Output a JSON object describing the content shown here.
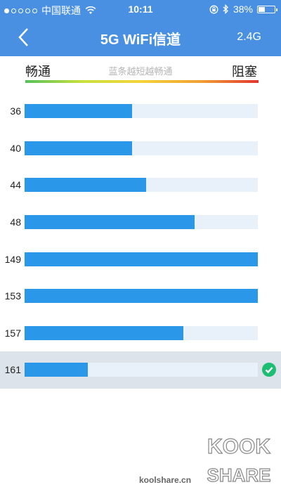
{
  "status_bar": {
    "signal_dots": [
      true,
      false,
      false,
      false,
      false
    ],
    "carrier": "中国联通",
    "time": "10:11",
    "battery": "38%",
    "icons": [
      "wifi-icon",
      "rotation-lock-icon",
      "bluetooth-icon",
      "battery-icon"
    ]
  },
  "nav": {
    "back_icon": "chevron-left-icon",
    "title": "5G WiFi信道",
    "right_label": "2.4G"
  },
  "legend": {
    "left": "畅通",
    "hint": "蓝条越短越畅通",
    "right": "阻塞",
    "gradient_colors": [
      "#55c15a",
      "#cbe13e",
      "#f5d23a",
      "#f2a033",
      "#e3352f"
    ]
  },
  "channels": [
    {
      "label": "36",
      "level": 0.46,
      "selected": false
    },
    {
      "label": "40",
      "level": 0.46,
      "selected": false
    },
    {
      "label": "44",
      "level": 0.52,
      "selected": false
    },
    {
      "label": "48",
      "level": 0.73,
      "selected": false
    },
    {
      "label": "149",
      "level": 1.0,
      "selected": false
    },
    {
      "label": "153",
      "level": 1.0,
      "selected": false
    },
    {
      "label": "157",
      "level": 0.68,
      "selected": false
    },
    {
      "label": "161",
      "level": 0.27,
      "selected": true
    }
  ],
  "colors": {
    "header": "#4a90e2",
    "bar": "#2b97e8",
    "track": "#e8f1fa",
    "selected_row": "#dde3ea",
    "check": "#1ebd74"
  },
  "watermark": {
    "logo_top": "KOOK",
    "logo_bottom": "SHARE",
    "url": "koolshare.cn"
  }
}
